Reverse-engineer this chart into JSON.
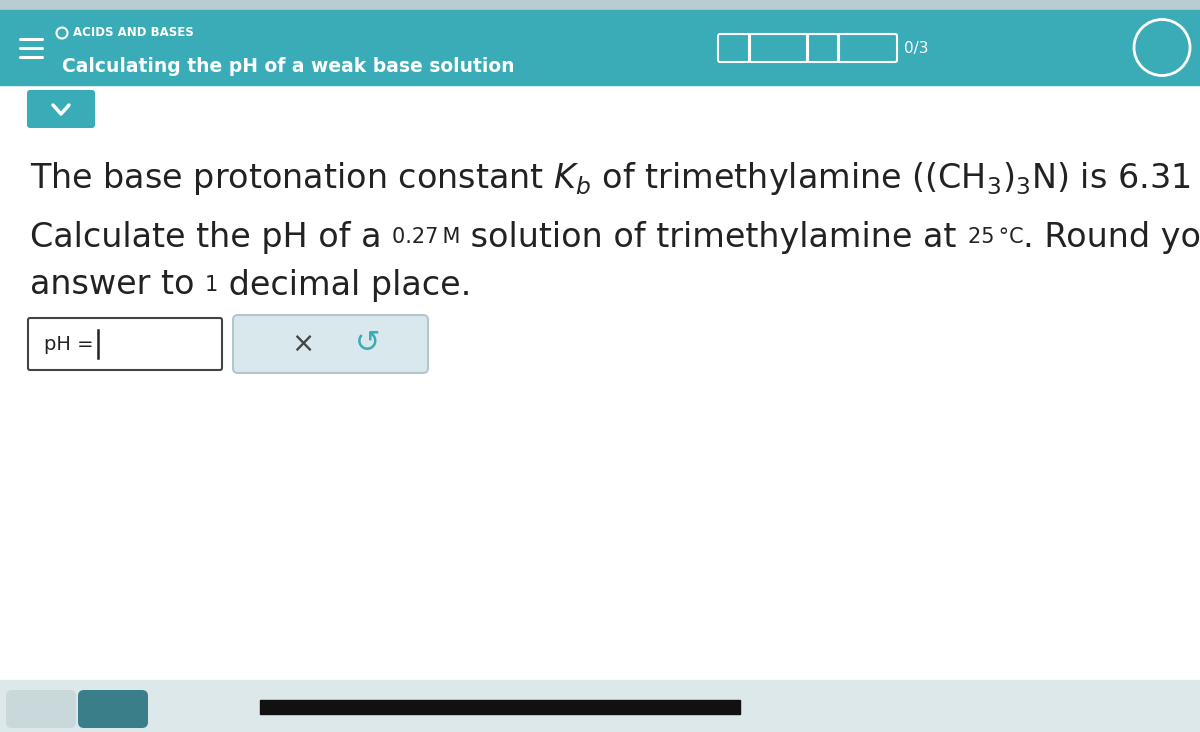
{
  "header_bg_color": "#3aacb8",
  "header_strip_color": "#b8cdd0",
  "body_bg_color": "#ffffff",
  "main_text_color": "#222222",
  "header_small_text": "ACIDS AND BASES",
  "header_main_text": "Calculating the pH of a weak base solution",
  "score_text": "0/3",
  "teal_color": "#3aacb8",
  "teal_dark": "#2e8f99",
  "bottom_bg_color": "#dce8ea",
  "bottom_btn1_color": "#c8d8db",
  "bottom_btn2_color": "#3a7e8a",
  "bottom_bar_color": "#111111",
  "x_button": "×",
  "refresh_symbol": "↺",
  "figw": 12.0,
  "figh": 7.32,
  "dpi": 100
}
